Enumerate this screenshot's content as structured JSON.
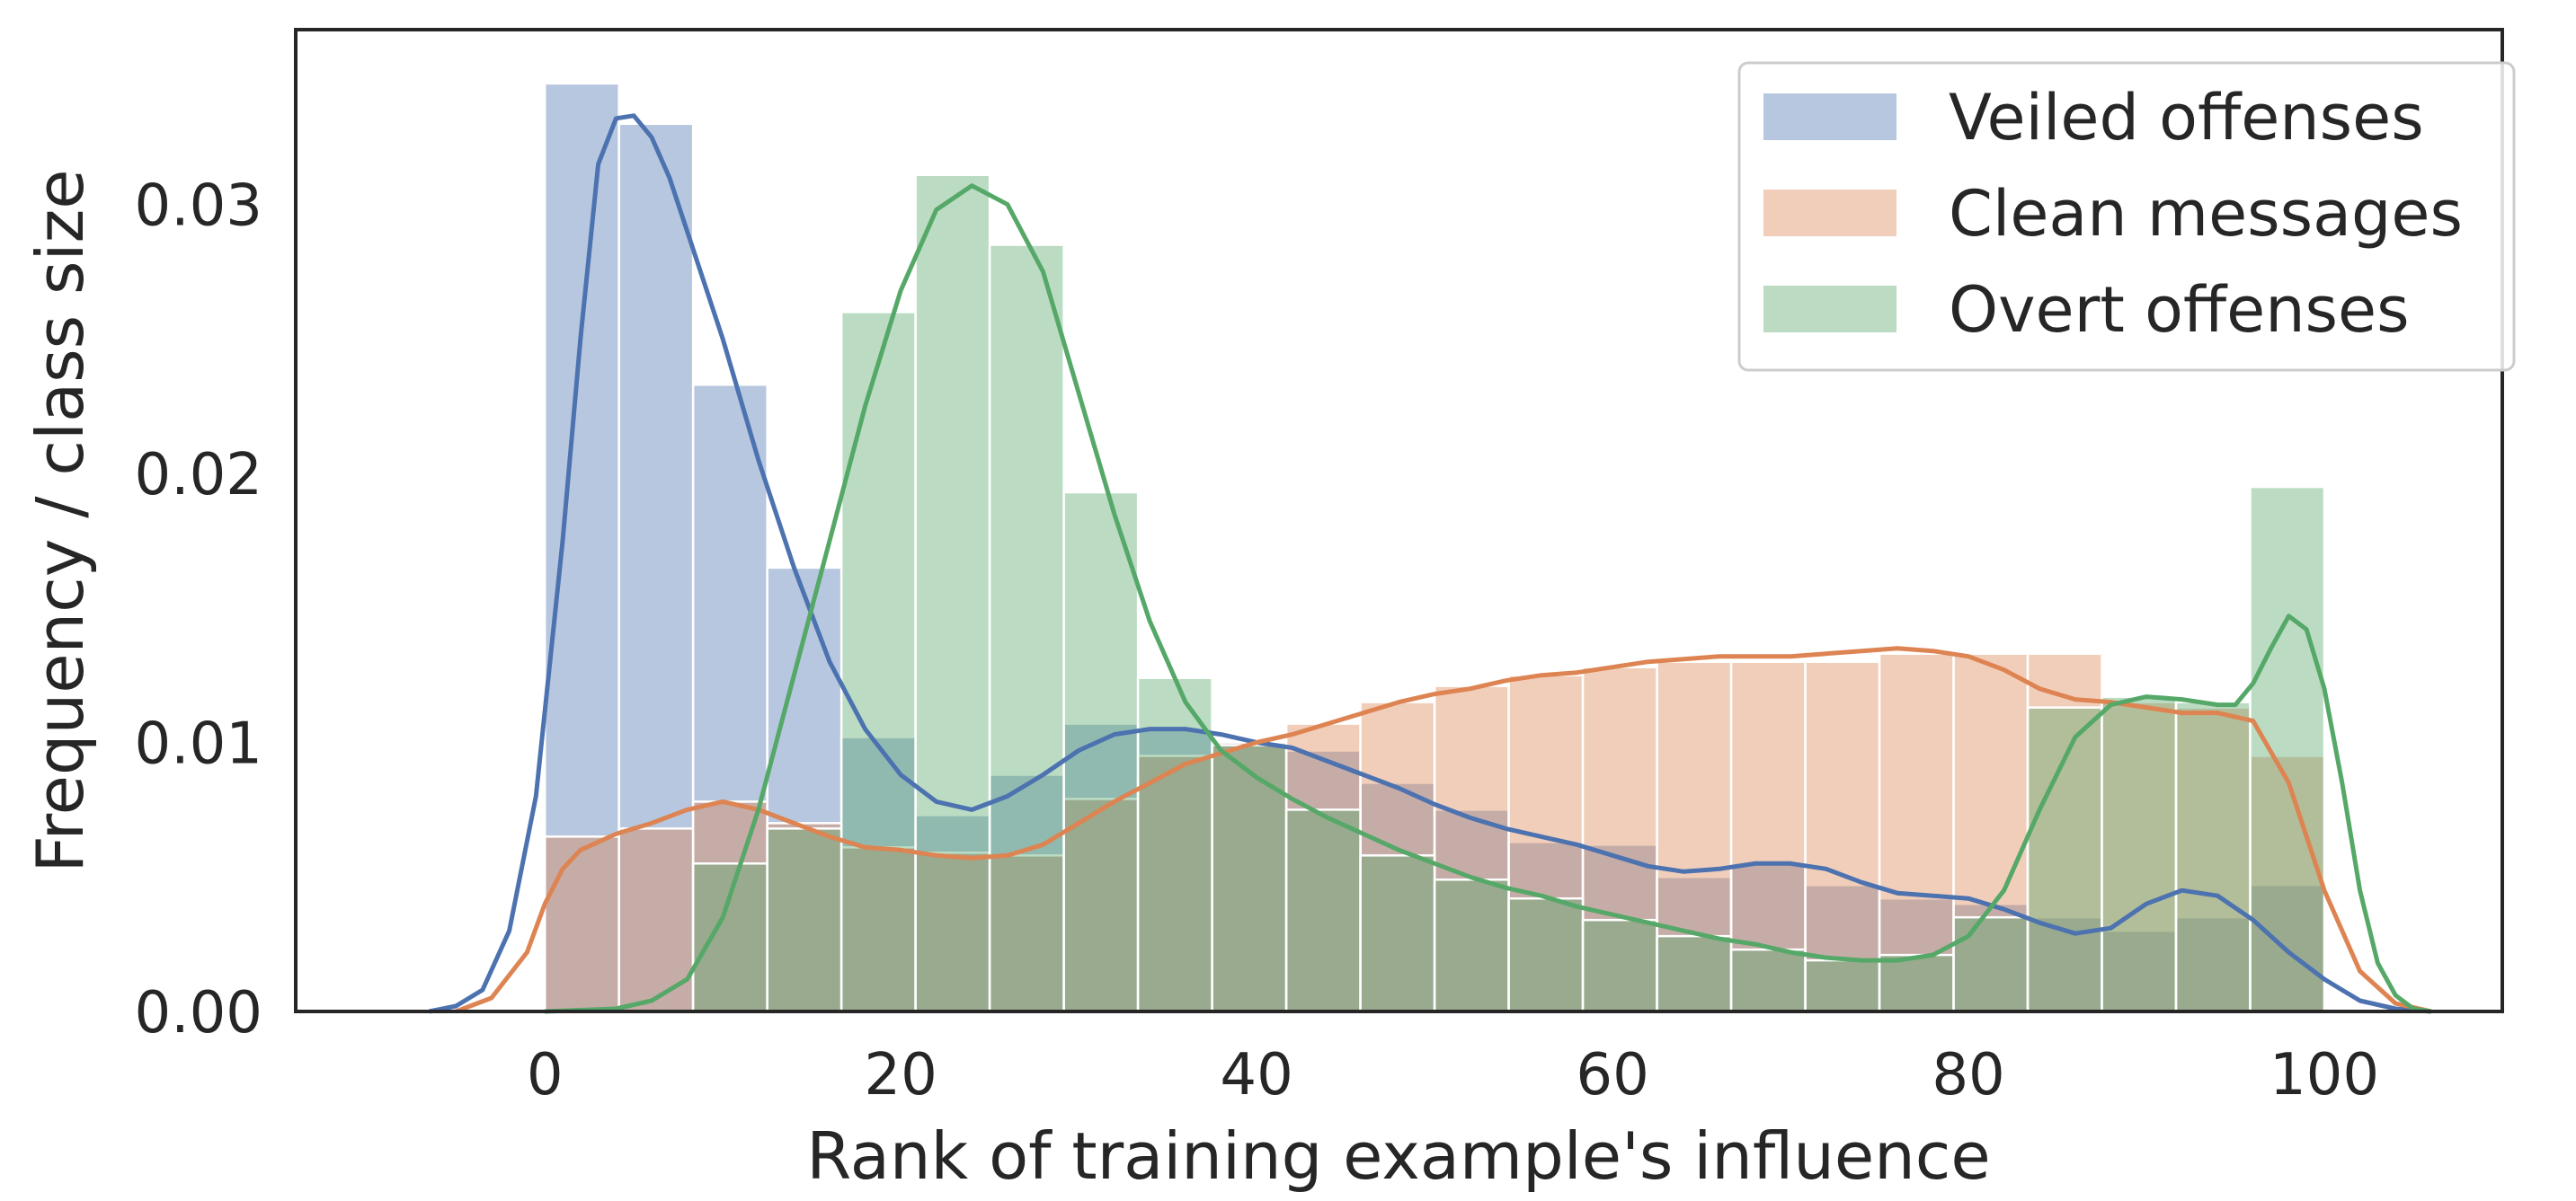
{
  "chart_data": {
    "type": "bar",
    "xlabel": "Rank of training example's influence",
    "ylabel": "Frequency / class size",
    "xlim": [
      -14,
      110
    ],
    "ylim": [
      0,
      0.0365
    ],
    "x_ticks": [
      0,
      20,
      40,
      60,
      80,
      100
    ],
    "x_tick_labels": [
      "0",
      "20",
      "40",
      "60",
      "80",
      "100"
    ],
    "y_ticks": [
      0,
      0.01,
      0.02,
      0.03
    ],
    "y_tick_labels": [
      "0.00",
      "0.01",
      "0.02",
      "0.03"
    ],
    "grid": false,
    "legend_position": "top-right",
    "bin_edges": [
      0,
      4.167,
      8.333,
      12.5,
      16.667,
      20.833,
      25,
      29.167,
      33.333,
      37.5,
      41.667,
      45.833,
      50,
      54.167,
      58.333,
      62.5,
      66.667,
      70.833,
      75,
      79.167,
      83.333,
      87.5,
      91.667,
      95.833,
      100
    ],
    "series": [
      {
        "name": "Veiled offenses",
        "color": "#4c72b0",
        "hist": [
          0.0345,
          0.033,
          0.0233,
          0.0165,
          0.0102,
          0.0073,
          0.0088,
          0.0107,
          0.0105,
          0.01,
          0.0097,
          0.0085,
          0.0075,
          0.0063,
          0.0062,
          0.005,
          0.0055,
          0.0047,
          0.0042,
          0.004,
          0.0035,
          0.003,
          0.0035,
          0.0047
        ],
        "kde": [
          [
            -6.5,
            0.0
          ],
          [
            -5,
            0.0002
          ],
          [
            -3.5,
            0.0008
          ],
          [
            -2,
            0.003
          ],
          [
            -0.5,
            0.008
          ],
          [
            1,
            0.0175
          ],
          [
            2,
            0.025
          ],
          [
            3,
            0.0315
          ],
          [
            4,
            0.0332
          ],
          [
            5,
            0.0333
          ],
          [
            6,
            0.0325
          ],
          [
            7,
            0.031
          ],
          [
            8,
            0.029
          ],
          [
            10,
            0.025
          ],
          [
            12,
            0.0205
          ],
          [
            14,
            0.0165
          ],
          [
            16,
            0.013
          ],
          [
            18,
            0.0105
          ],
          [
            20,
            0.0088
          ],
          [
            22,
            0.0078
          ],
          [
            24,
            0.0075
          ],
          [
            26,
            0.008
          ],
          [
            28,
            0.0088
          ],
          [
            30,
            0.0097
          ],
          [
            32,
            0.0103
          ],
          [
            34,
            0.0105
          ],
          [
            36,
            0.0105
          ],
          [
            38,
            0.0103
          ],
          [
            40,
            0.01
          ],
          [
            42,
            0.0098
          ],
          [
            44,
            0.0093
          ],
          [
            46,
            0.0088
          ],
          [
            48,
            0.0083
          ],
          [
            50,
            0.0077
          ],
          [
            52,
            0.0072
          ],
          [
            54,
            0.0068
          ],
          [
            56,
            0.0065
          ],
          [
            58,
            0.0062
          ],
          [
            60,
            0.0058
          ],
          [
            62,
            0.0054
          ],
          [
            64,
            0.0052
          ],
          [
            66,
            0.0053
          ],
          [
            68,
            0.0055
          ],
          [
            70,
            0.0055
          ],
          [
            72,
            0.0053
          ],
          [
            74,
            0.0048
          ],
          [
            76,
            0.0044
          ],
          [
            78,
            0.0043
          ],
          [
            80,
            0.0042
          ],
          [
            82,
            0.0038
          ],
          [
            84,
            0.0033
          ],
          [
            86,
            0.0029
          ],
          [
            88,
            0.0031
          ],
          [
            90,
            0.004
          ],
          [
            92,
            0.0045
          ],
          [
            94,
            0.0043
          ],
          [
            96,
            0.0034
          ],
          [
            98,
            0.0022
          ],
          [
            100,
            0.0012
          ],
          [
            102,
            0.0004
          ],
          [
            104,
            0.0001
          ],
          [
            106,
            0.0
          ]
        ]
      },
      {
        "name": "Clean messages",
        "color": "#dd8452",
        "hist": [
          0.0065,
          0.0068,
          0.0078,
          0.007,
          0.0061,
          0.0059,
          0.0058,
          0.0079,
          0.0095,
          0.01,
          0.0107,
          0.0115,
          0.0121,
          0.0125,
          0.0128,
          0.013,
          0.013,
          0.013,
          0.0133,
          0.0133,
          0.0133,
          0.0115,
          0.0113,
          0.0095
        ],
        "kde": [
          [
            -5,
            0.0
          ],
          [
            -3,
            0.0005
          ],
          [
            -1,
            0.0022
          ],
          [
            0,
            0.004
          ],
          [
            1,
            0.0053
          ],
          [
            2,
            0.006
          ],
          [
            4,
            0.0066
          ],
          [
            6,
            0.007
          ],
          [
            8,
            0.0075
          ],
          [
            10,
            0.0078
          ],
          [
            12,
            0.0075
          ],
          [
            14,
            0.007
          ],
          [
            16,
            0.0065
          ],
          [
            18,
            0.0061
          ],
          [
            20,
            0.006
          ],
          [
            22,
            0.0058
          ],
          [
            24,
            0.0057
          ],
          [
            26,
            0.0058
          ],
          [
            28,
            0.0062
          ],
          [
            30,
            0.007
          ],
          [
            32,
            0.0078
          ],
          [
            34,
            0.0085
          ],
          [
            36,
            0.0092
          ],
          [
            38,
            0.0096
          ],
          [
            40,
            0.01
          ],
          [
            42,
            0.0103
          ],
          [
            44,
            0.0107
          ],
          [
            46,
            0.0111
          ],
          [
            48,
            0.0115
          ],
          [
            50,
            0.0118
          ],
          [
            52,
            0.012
          ],
          [
            54,
            0.0123
          ],
          [
            56,
            0.0125
          ],
          [
            58,
            0.0126
          ],
          [
            60,
            0.0128
          ],
          [
            62,
            0.013
          ],
          [
            64,
            0.0131
          ],
          [
            66,
            0.0132
          ],
          [
            68,
            0.0132
          ],
          [
            70,
            0.0132
          ],
          [
            72,
            0.0133
          ],
          [
            74,
            0.0134
          ],
          [
            76,
            0.0135
          ],
          [
            78,
            0.0134
          ],
          [
            80,
            0.0132
          ],
          [
            82,
            0.0127
          ],
          [
            84,
            0.012
          ],
          [
            86,
            0.0116
          ],
          [
            88,
            0.0115
          ],
          [
            90,
            0.0113
          ],
          [
            92,
            0.0111
          ],
          [
            94,
            0.0111
          ],
          [
            96,
            0.0108
          ],
          [
            98,
            0.0085
          ],
          [
            100,
            0.0045
          ],
          [
            102,
            0.0015
          ],
          [
            104,
            0.0003
          ],
          [
            106,
            0.0
          ]
        ]
      },
      {
        "name": "Overt offenses",
        "color": "#55a868",
        "hist": [
          0.0,
          0.0,
          0.0055,
          0.0068,
          0.026,
          0.0311,
          0.0285,
          0.0193,
          0.0124,
          0.0099,
          0.0075,
          0.0058,
          0.0049,
          0.0042,
          0.0034,
          0.0028,
          0.0023,
          0.0019,
          0.0021,
          0.0035,
          0.0113,
          0.0117,
          0.0115,
          0.0195
        ],
        "kde": [
          [
            0,
            0.0
          ],
          [
            4,
            0.0001
          ],
          [
            6,
            0.0004
          ],
          [
            8,
            0.0012
          ],
          [
            10,
            0.0035
          ],
          [
            12,
            0.0075
          ],
          [
            14,
            0.0125
          ],
          [
            16,
            0.0175
          ],
          [
            18,
            0.0225
          ],
          [
            20,
            0.0268
          ],
          [
            22,
            0.0298
          ],
          [
            24,
            0.0307
          ],
          [
            26,
            0.03
          ],
          [
            28,
            0.0275
          ],
          [
            30,
            0.023
          ],
          [
            32,
            0.0185
          ],
          [
            34,
            0.0145
          ],
          [
            36,
            0.0115
          ],
          [
            38,
            0.0097
          ],
          [
            40,
            0.0087
          ],
          [
            42,
            0.0079
          ],
          [
            44,
            0.0072
          ],
          [
            46,
            0.0066
          ],
          [
            48,
            0.006
          ],
          [
            50,
            0.0055
          ],
          [
            52,
            0.005
          ],
          [
            54,
            0.0046
          ],
          [
            56,
            0.0043
          ],
          [
            58,
            0.0039
          ],
          [
            60,
            0.0036
          ],
          [
            62,
            0.0033
          ],
          [
            64,
            0.003
          ],
          [
            66,
            0.0027
          ],
          [
            68,
            0.0025
          ],
          [
            70,
            0.0022
          ],
          [
            72,
            0.002
          ],
          [
            74,
            0.0019
          ],
          [
            76,
            0.0019
          ],
          [
            78,
            0.0021
          ],
          [
            80,
            0.0028
          ],
          [
            82,
            0.0045
          ],
          [
            84,
            0.0075
          ],
          [
            86,
            0.0102
          ],
          [
            88,
            0.0114
          ],
          [
            90,
            0.0117
          ],
          [
            92,
            0.0116
          ],
          [
            94,
            0.0114
          ],
          [
            95,
            0.0114
          ],
          [
            96,
            0.0122
          ],
          [
            97,
            0.0135
          ],
          [
            98,
            0.0147
          ],
          [
            99,
            0.0142
          ],
          [
            100,
            0.012
          ],
          [
            101,
            0.0085
          ],
          [
            102,
            0.0045
          ],
          [
            103,
            0.0018
          ],
          [
            104,
            0.0006
          ],
          [
            105,
            0.0001
          ],
          [
            106,
            0.0
          ]
        ]
      }
    ]
  }
}
